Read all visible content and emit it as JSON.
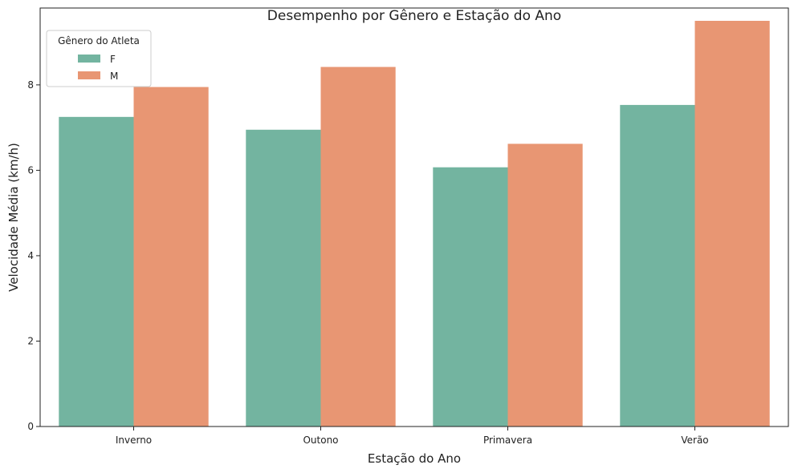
{
  "chart_data": {
    "type": "bar",
    "title": "Desempenho por Gênero e Estação do Ano",
    "xlabel": "Estação do Ano",
    "ylabel": "Velocidade Média (km/h)",
    "categories": [
      "Inverno",
      "Outono",
      "Primavera",
      "Verão"
    ],
    "series": [
      {
        "name": "F",
        "values": [
          7.25,
          6.95,
          6.07,
          7.53
        ],
        "color": "#73b4a0"
      },
      {
        "name": "M",
        "values": [
          7.95,
          8.42,
          6.62,
          9.5
        ],
        "color": "#e89673"
      }
    ],
    "ylim": [
      0,
      9.8
    ],
    "yticks": [
      0,
      2,
      4,
      6,
      8
    ],
    "grid": false,
    "legend": {
      "title": "Gênero do Atleta",
      "placement": "top-left"
    }
  }
}
